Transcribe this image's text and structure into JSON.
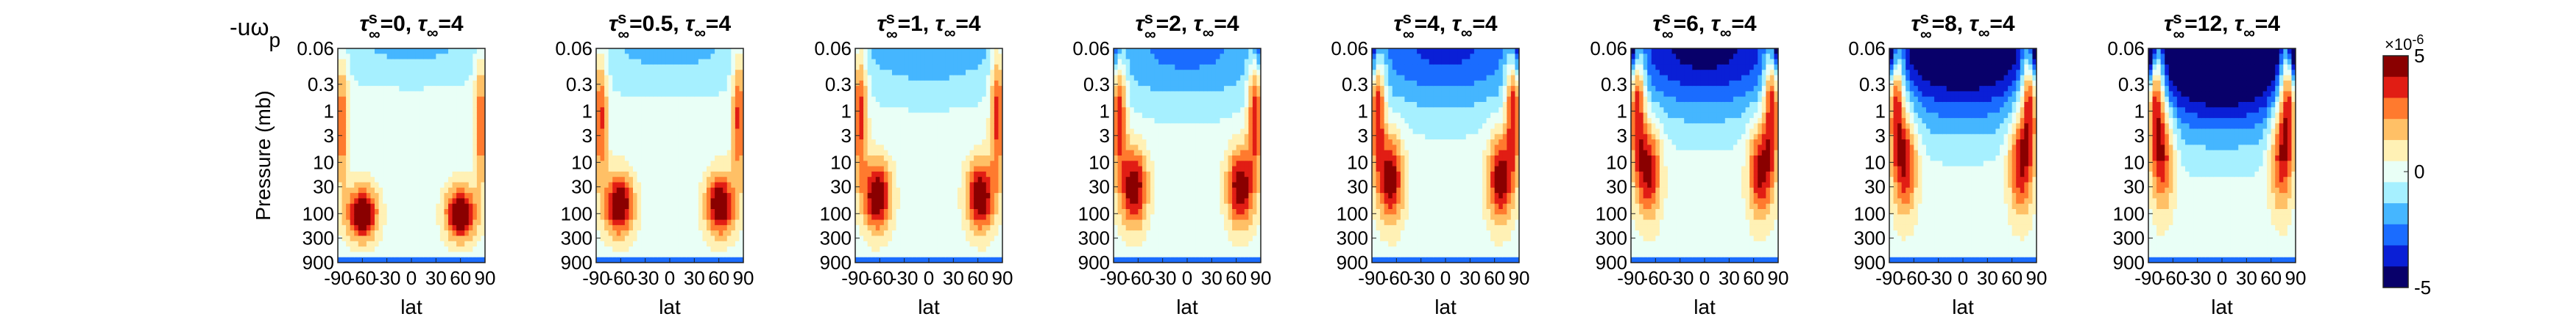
{
  "figure": {
    "corner_label": "-uω",
    "corner_label_sub": "p",
    "ylabel": "Pressure (mb)",
    "xlabel": "lat"
  },
  "colorbar": {
    "exponent_label": "×10",
    "exponent_power": "-6",
    "ticks": [
      "5",
      "0",
      "-5"
    ],
    "colors": [
      "#08006a",
      "#0a1fd6",
      "#1a6cff",
      "#45b6ff",
      "#a6f0ff",
      "#e9fff6",
      "#fff1b5",
      "#ffc066",
      "#ff7a2e",
      "#e11d14",
      "#8a0000"
    ]
  },
  "chart_data": [
    {
      "type": "heatmap",
      "title": "τ∞s=0, τ∞=4",
      "title_parts": {
        "sym": "τ",
        "sup": "s",
        "sub": "∞",
        "s_value": "=0, ",
        "sym2": "τ",
        "sub2": "∞",
        "tau_value": "=4"
      },
      "tau_s": 0,
      "tau": 4,
      "x_ticks": [
        "-90",
        "-60",
        "-30",
        "0",
        "30",
        "60",
        "90"
      ],
      "y_ticks": [
        "0.06",
        "0.3",
        "1",
        "3",
        "10",
        "30",
        "100",
        "300",
        "900"
      ],
      "xlim": [
        -90,
        90
      ],
      "ylim_mb": [
        900,
        0.06
      ],
      "y_scale": "log",
      "units": "×10^-6",
      "clim": [
        -5,
        5
      ]
    },
    {
      "type": "heatmap",
      "title": "τ∞s=0.5, τ∞=4",
      "title_parts": {
        "sym": "τ",
        "sup": "s",
        "sub": "∞",
        "s_value": "=0.5, ",
        "sym2": "τ",
        "sub2": "∞",
        "tau_value": "=4"
      },
      "tau_s": 0.5,
      "tau": 4,
      "x_ticks": [
        "-90",
        "-60",
        "-30",
        "0",
        "30",
        "60",
        "90"
      ],
      "y_ticks": [
        "0.06",
        "0.3",
        "1",
        "3",
        "10",
        "30",
        "100",
        "300",
        "900"
      ],
      "xlim": [
        -90,
        90
      ],
      "ylim_mb": [
        900,
        0.06
      ],
      "y_scale": "log",
      "units": "×10^-6",
      "clim": [
        -5,
        5
      ]
    },
    {
      "type": "heatmap",
      "title": "τ∞s=1, τ∞=4",
      "title_parts": {
        "sym": "τ",
        "sup": "s",
        "sub": "∞",
        "s_value": "=1, ",
        "sym2": "τ",
        "sub2": "∞",
        "tau_value": "=4"
      },
      "tau_s": 1,
      "tau": 4,
      "x_ticks": [
        "-90",
        "-60",
        "-30",
        "0",
        "30",
        "60",
        "90"
      ],
      "y_ticks": [
        "0.06",
        "0.3",
        "1",
        "3",
        "10",
        "30",
        "100",
        "300",
        "900"
      ],
      "xlim": [
        -90,
        90
      ],
      "ylim_mb": [
        900,
        0.06
      ],
      "y_scale": "log",
      "units": "×10^-6",
      "clim": [
        -5,
        5
      ]
    },
    {
      "type": "heatmap",
      "title": "τ∞s=2, τ∞=4",
      "title_parts": {
        "sym": "τ",
        "sup": "s",
        "sub": "∞",
        "s_value": "=2, ",
        "sym2": "τ",
        "sub2": "∞",
        "tau_value": "=4"
      },
      "tau_s": 2,
      "tau": 4,
      "x_ticks": [
        "-90",
        "-60",
        "-30",
        "0",
        "30",
        "60",
        "90"
      ],
      "y_ticks": [
        "0.06",
        "0.3",
        "1",
        "3",
        "10",
        "30",
        "100",
        "300",
        "900"
      ],
      "xlim": [
        -90,
        90
      ],
      "ylim_mb": [
        900,
        0.06
      ],
      "y_scale": "log",
      "units": "×10^-6",
      "clim": [
        -5,
        5
      ]
    },
    {
      "type": "heatmap",
      "title": "τ∞s=4, τ∞=4",
      "title_parts": {
        "sym": "τ",
        "sup": "s",
        "sub": "∞",
        "s_value": "=4, ",
        "sym2": "τ",
        "sub2": "∞",
        "tau_value": "=4"
      },
      "tau_s": 4,
      "tau": 4,
      "x_ticks": [
        "-90",
        "-60",
        "-30",
        "0",
        "30",
        "60",
        "90"
      ],
      "y_ticks": [
        "0.06",
        "0.3",
        "1",
        "3",
        "10",
        "30",
        "100",
        "300",
        "900"
      ],
      "xlim": [
        -90,
        90
      ],
      "ylim_mb": [
        900,
        0.06
      ],
      "y_scale": "log",
      "units": "×10^-6",
      "clim": [
        -5,
        5
      ]
    },
    {
      "type": "heatmap",
      "title": "τ∞s=6, τ∞=4",
      "title_parts": {
        "sym": "τ",
        "sup": "s",
        "sub": "∞",
        "s_value": "=6, ",
        "sym2": "τ",
        "sub2": "∞",
        "tau_value": "=4"
      },
      "tau_s": 6,
      "tau": 4,
      "x_ticks": [
        "-90",
        "-60",
        "-30",
        "0",
        "30",
        "60",
        "90"
      ],
      "y_ticks": [
        "0.06",
        "0.3",
        "1",
        "3",
        "10",
        "30",
        "100",
        "300",
        "900"
      ],
      "xlim": [
        -90,
        90
      ],
      "ylim_mb": [
        900,
        0.06
      ],
      "y_scale": "log",
      "units": "×10^-6",
      "clim": [
        -5,
        5
      ]
    },
    {
      "type": "heatmap",
      "title": "τ∞s=8, τ∞=4",
      "title_parts": {
        "sym": "τ",
        "sup": "s",
        "sub": "∞",
        "s_value": "=8, ",
        "sym2": "τ",
        "sub2": "∞",
        "tau_value": "=4"
      },
      "tau_s": 8,
      "tau": 4,
      "x_ticks": [
        "-90",
        "-60",
        "-30",
        "0",
        "30",
        "60",
        "90"
      ],
      "y_ticks": [
        "0.06",
        "0.3",
        "1",
        "3",
        "10",
        "30",
        "100",
        "300",
        "900"
      ],
      "xlim": [
        -90,
        90
      ],
      "ylim_mb": [
        900,
        0.06
      ],
      "y_scale": "log",
      "units": "×10^-6",
      "clim": [
        -5,
        5
      ]
    },
    {
      "type": "heatmap",
      "title": "τ∞s=12, τ∞=4",
      "title_parts": {
        "sym": "τ",
        "sup": "s",
        "sub": "∞",
        "s_value": "=12, ",
        "sym2": "τ",
        "sub2": "∞",
        "tau_value": "=4"
      },
      "tau_s": 12,
      "tau": 4,
      "x_ticks": [
        "-90",
        "-60",
        "-30",
        "0",
        "30",
        "60",
        "90"
      ],
      "y_ticks": [
        "0.06",
        "0.3",
        "1",
        "3",
        "10",
        "30",
        "100",
        "300",
        "900"
      ],
      "xlim": [
        -90,
        90
      ],
      "ylim_mb": [
        900,
        0.06
      ],
      "y_scale": "log",
      "units": "×10^-6",
      "clim": [
        -5,
        5
      ]
    }
  ]
}
